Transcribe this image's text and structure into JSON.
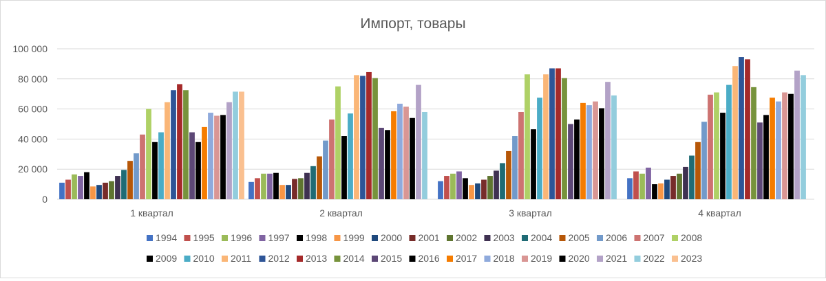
{
  "chart_data": {
    "type": "bar",
    "title": "Импорт, товары",
    "xlabel": "",
    "ylabel": "",
    "ylim": [
      0,
      100000
    ],
    "yticks": [
      "0",
      "20 000",
      "40 000",
      "60 000",
      "80 000",
      "100 000"
    ],
    "ytick_values": [
      0,
      20000,
      40000,
      60000,
      80000,
      100000
    ],
    "grid": true,
    "legend_position": "bottom",
    "categories": [
      "1 квартал",
      "2 квартал",
      "3 квартал",
      "4 квартал"
    ],
    "series": [
      {
        "name": "1994",
        "color": "#4472c4",
        "values": [
          11000,
          11500,
          12000,
          14000
        ]
      },
      {
        "name": "1995",
        "color": "#c0504d",
        "values": [
          13000,
          14000,
          15500,
          18500
        ]
      },
      {
        "name": "1996",
        "color": "#9bbb59",
        "values": [
          16500,
          17000,
          17000,
          17000
        ]
      },
      {
        "name": "1997",
        "color": "#8064a2",
        "values": [
          15500,
          17000,
          18500,
          21000
        ]
      },
      {
        "name": "1998",
        "color": "#000000",
        "values": [
          18000,
          17500,
          14000,
          10000
        ]
      },
      {
        "name": "1999",
        "color": "#f79646",
        "values": [
          8500,
          9500,
          9500,
          10500
        ]
      },
      {
        "name": "2000",
        "color": "#1f497d",
        "values": [
          9500,
          9500,
          10500,
          13000
        ]
      },
      {
        "name": "2001",
        "color": "#772c2a",
        "values": [
          11000,
          13500,
          13000,
          15500
        ]
      },
      {
        "name": "2002",
        "color": "#5f7530",
        "values": [
          12000,
          14000,
          15500,
          17000
        ]
      },
      {
        "name": "2003",
        "color": "#3f3151",
        "values": [
          15500,
          17500,
          19000,
          21500
        ]
      },
      {
        "name": "2004",
        "color": "#1f6b75",
        "values": [
          19500,
          22000,
          24000,
          29000
        ]
      },
      {
        "name": "2005",
        "color": "#b65708",
        "values": [
          25500,
          28500,
          32000,
          38000
        ]
      },
      {
        "name": "2006",
        "color": "#729aca",
        "values": [
          30500,
          39000,
          42000,
          51500
        ]
      },
      {
        "name": "2007",
        "color": "#cd7371",
        "values": [
          43000,
          53000,
          58000,
          69500
        ]
      },
      {
        "name": "2008",
        "color": "#afd166",
        "values": [
          60000,
          75000,
          83000,
          71000
        ]
      },
      {
        "name": "2009",
        "color": "#000000",
        "values": [
          38000,
          42000,
          46500,
          57500
        ]
      },
      {
        "name": "2010",
        "color": "#4bacc6",
        "values": [
          44500,
          57000,
          67500,
          76000
        ]
      },
      {
        "name": "2011",
        "color": "#fab677",
        "values": [
          64500,
          82500,
          83000,
          88500
        ]
      },
      {
        "name": "2012",
        "color": "#2e5597",
        "values": [
          72500,
          82000,
          87000,
          94500
        ]
      },
      {
        "name": "2013",
        "color": "#a52a2a",
        "values": [
          76500,
          84500,
          87000,
          93000
        ]
      },
      {
        "name": "2014",
        "color": "#77933c",
        "values": [
          72500,
          80500,
          80500,
          74500
        ]
      },
      {
        "name": "2015",
        "color": "#5c4776",
        "values": [
          44500,
          47500,
          50000,
          51000
        ]
      },
      {
        "name": "2016",
        "color": "#000000",
        "values": [
          38000,
          46000,
          53000,
          56000
        ]
      },
      {
        "name": "2017",
        "color": "#f57c00",
        "values": [
          48000,
          58500,
          64000,
          67500
        ]
      },
      {
        "name": "2018",
        "color": "#8faadc",
        "values": [
          57500,
          63500,
          62500,
          65000
        ]
      },
      {
        "name": "2019",
        "color": "#d99694",
        "values": [
          55500,
          61500,
          65000,
          71000
        ]
      },
      {
        "name": "2020",
        "color": "#000000",
        "values": [
          56000,
          54000,
          60500,
          70000
        ]
      },
      {
        "name": "2021",
        "color": "#b3a2c7",
        "values": [
          64500,
          76000,
          78000,
          85500
        ]
      },
      {
        "name": "2022",
        "color": "#93cddd",
        "values": [
          71500,
          58000,
          69000,
          82500
        ]
      },
      {
        "name": "2023",
        "color": "#fac090",
        "values": [
          71500,
          null,
          null,
          null
        ]
      }
    ]
  }
}
